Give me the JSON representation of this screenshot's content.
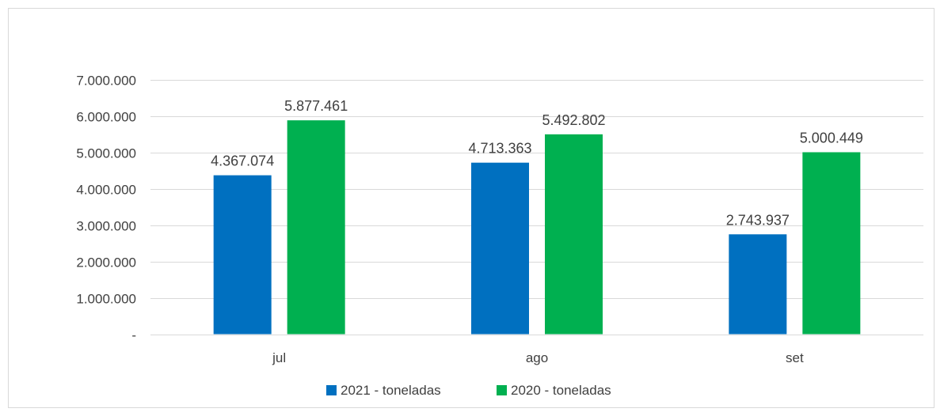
{
  "chart_data": {
    "type": "bar",
    "categories": [
      "jul",
      "ago",
      "set"
    ],
    "series": [
      {
        "name": "2021 - toneladas",
        "values": [
          4367074,
          4713363,
          2743937
        ],
        "labels": [
          "4.367.074",
          "4.713.363",
          "2.743.937"
        ],
        "color": "#0070c0"
      },
      {
        "name": "2020 - toneladas",
        "values": [
          5877461,
          5492802,
          5000449
        ],
        "labels": [
          "5.877.461",
          "5.492.802",
          "5.000.449"
        ],
        "color": "#00b050"
      }
    ],
    "ylim": [
      0,
      7000000
    ],
    "yticks": [
      0,
      1000000,
      2000000,
      3000000,
      4000000,
      5000000,
      6000000,
      7000000
    ],
    "ytick_labels": [
      "-",
      "1.000.000",
      "2.000.000",
      "3.000.000",
      "4.000.000",
      "5.000.000",
      "6.000.000",
      "7.000.000"
    ],
    "grid": true,
    "legend_position": "bottom",
    "gridline_color": "#d9d9d9",
    "title": "",
    "xlabel": "",
    "ylabel": ""
  }
}
